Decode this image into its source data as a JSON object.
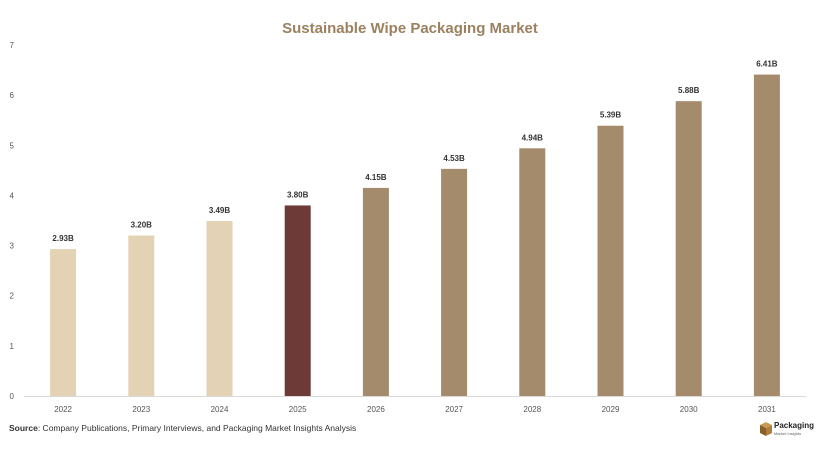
{
  "chart_data": {
    "type": "bar",
    "title": "Sustainable Wipe Packaging Market",
    "categories": [
      "2022",
      "2023",
      "2024",
      "2025",
      "2026",
      "2027",
      "2028",
      "2029",
      "2030",
      "2031"
    ],
    "values": [
      2.93,
      3.2,
      3.49,
      3.8,
      4.15,
      4.53,
      4.94,
      5.39,
      5.88,
      6.41
    ],
    "data_labels": [
      "2.93B",
      "3.20B",
      "3.49B",
      "3.80B",
      "4.15B",
      "4.53B",
      "4.94B",
      "5.39B",
      "5.88B",
      "6.41B"
    ],
    "xlabel": "",
    "ylabel": "",
    "ylim": [
      0,
      7
    ],
    "yticks": [
      "0",
      "1",
      "2",
      "3",
      "4",
      "5",
      "6",
      "7"
    ],
    "grid": false,
    "colors": {
      "historical": "#e3d2b3",
      "current": "#6e3a38",
      "forecast": "#a38b6b"
    },
    "bar_groups": [
      "historical",
      "historical",
      "historical",
      "current",
      "forecast",
      "forecast",
      "forecast",
      "forecast",
      "forecast",
      "forecast"
    ]
  },
  "footer": {
    "source_label": "Source",
    "source_text": ": Company Publications, Primary Interviews, and Packaging Market Insights Analysis"
  },
  "logo": {
    "name": "Packaging",
    "sub": "Market Insights",
    "icon": "package-box-icon"
  }
}
